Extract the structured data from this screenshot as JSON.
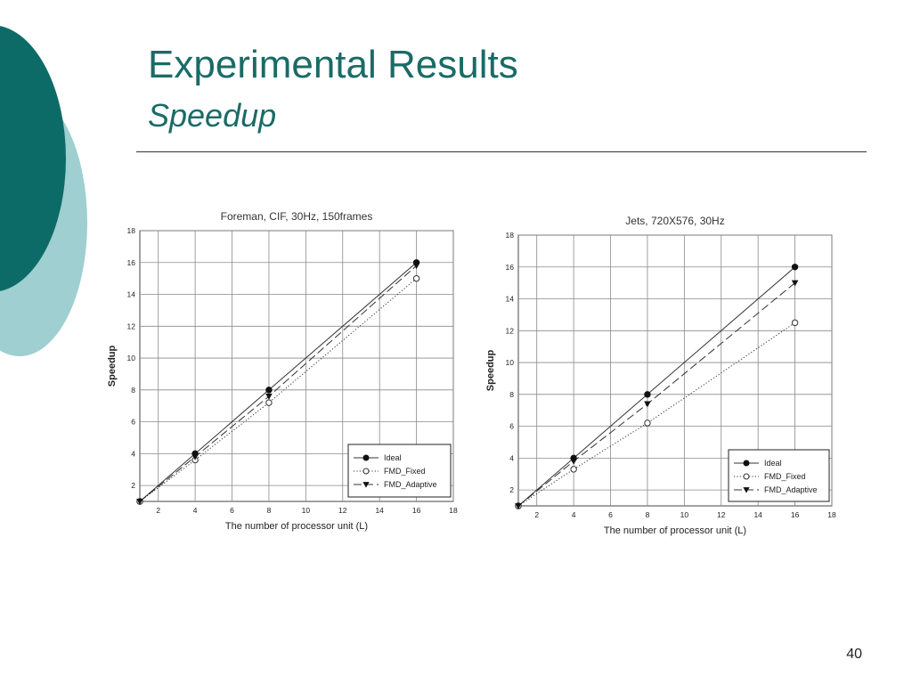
{
  "slide": {
    "title": "Experimental Results",
    "subtitle": "Speedup",
    "page_number": "40",
    "colors": {
      "title": "#1a6b66",
      "decor_dark": "#0d6b67",
      "decor_light": "#9fcfd0"
    }
  },
  "chart_data": [
    {
      "type": "line",
      "title": "Foreman, CIF, 30Hz, 150frames",
      "xlabel": "The number of processor unit (L)",
      "ylabel": "Speedup",
      "xlim": [
        1,
        18
      ],
      "ylim": [
        1,
        18
      ],
      "xticks": [
        2,
        4,
        6,
        8,
        10,
        12,
        14,
        16,
        18
      ],
      "yticks": [
        2,
        4,
        6,
        8,
        10,
        12,
        14,
        16,
        18
      ],
      "grid": true,
      "legend": "bottom-right",
      "x": [
        1,
        4,
        8,
        16
      ],
      "series": [
        {
          "name": "Ideal",
          "values": [
            1,
            4,
            8,
            16
          ],
          "marker": "filled-circle",
          "line": "solid"
        },
        {
          "name": "FMD_Fixed",
          "values": [
            1,
            3.6,
            7.2,
            15
          ],
          "marker": "open-circle",
          "line": "dotted"
        },
        {
          "name": "FMD_Adaptive",
          "values": [
            1,
            3.8,
            7.6,
            15.8
          ],
          "marker": "filled-triangle-down",
          "line": "dashed"
        }
      ]
    },
    {
      "type": "line",
      "title": "Jets, 720X576, 30Hz",
      "xlabel": "The number of processor unit (L)",
      "ylabel": "Speedup",
      "xlim": [
        1,
        18
      ],
      "ylim": [
        1,
        18
      ],
      "xticks": [
        2,
        4,
        6,
        8,
        10,
        12,
        14,
        16,
        18
      ],
      "yticks": [
        2,
        4,
        6,
        8,
        10,
        12,
        14,
        16,
        18
      ],
      "grid": true,
      "legend": "bottom-right",
      "x": [
        1,
        4,
        8,
        16
      ],
      "series": [
        {
          "name": "Ideal",
          "values": [
            1,
            4,
            8,
            16
          ],
          "marker": "filled-circle",
          "line": "solid"
        },
        {
          "name": "FMD_Fixed",
          "values": [
            1,
            3.3,
            6.2,
            12.5
          ],
          "marker": "open-circle",
          "line": "dotted"
        },
        {
          "name": "FMD_Adaptive",
          "values": [
            1,
            3.8,
            7.4,
            15
          ],
          "marker": "filled-triangle-down",
          "line": "dashed"
        }
      ]
    }
  ]
}
